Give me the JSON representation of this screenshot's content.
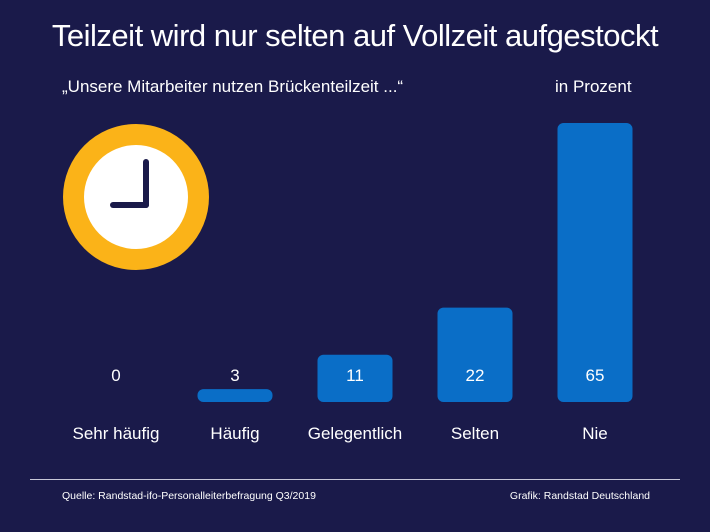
{
  "header": {
    "title": "Teilzeit wird nur selten auf Vollzeit aufgestockt",
    "subtitle": "„Unsere Mitarbeiter nutzen Brückenteilzeit ...“",
    "unit": "in Prozent"
  },
  "footer": {
    "source": "Quelle: Randstad-ifo-Personalleiterbefragung Q3/2019",
    "credit": "Grafik: Randstad Deutschland"
  },
  "colors": {
    "background": "#1a1a4a",
    "bar": "#0a6ec7",
    "clock_ring": "#fbb318",
    "clock_face": "#ffffff",
    "clock_hands": "#1a1a4a"
  },
  "icons": [
    "clock-icon"
  ],
  "chart_data": {
    "type": "bar",
    "categories": [
      "Sehr häufig",
      "Häufig",
      "Gelegentlich",
      "Selten",
      "Nie"
    ],
    "values": [
      0,
      3,
      11,
      22,
      65
    ],
    "value_labels": [
      "0",
      "3",
      "11",
      "22",
      "65"
    ],
    "title": "Teilzeit wird nur selten auf Vollzeit aufgestockt",
    "ylim": [
      0,
      65
    ],
    "grid": false,
    "legend": "none"
  }
}
